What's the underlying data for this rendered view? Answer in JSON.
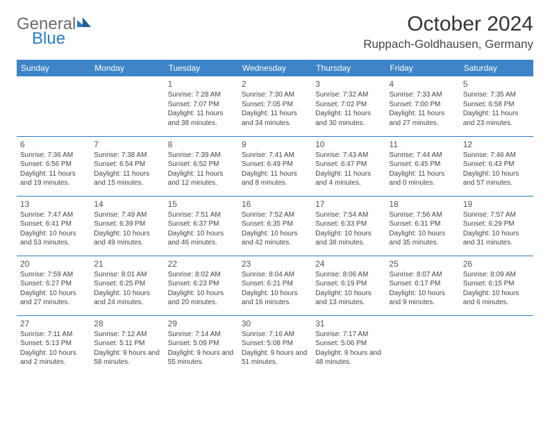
{
  "logo": {
    "part1": "General",
    "part2": "Blue"
  },
  "title": "October 2024",
  "location": "Ruppach-Goldhausen, Germany",
  "colors": {
    "header_bg": "#3d85c6",
    "header_text": "#ffffff",
    "rule": "#2a7bbf",
    "text": "#444444",
    "logo_blue": "#2a7bbf"
  },
  "weekdays": [
    "Sunday",
    "Monday",
    "Tuesday",
    "Wednesday",
    "Thursday",
    "Friday",
    "Saturday"
  ],
  "weeks": [
    [
      null,
      null,
      {
        "n": "1",
        "sr": "Sunrise: 7:28 AM",
        "ss": "Sunset: 7:07 PM",
        "dl": "Daylight: 11 hours and 38 minutes."
      },
      {
        "n": "2",
        "sr": "Sunrise: 7:30 AM",
        "ss": "Sunset: 7:05 PM",
        "dl": "Daylight: 11 hours and 34 minutes."
      },
      {
        "n": "3",
        "sr": "Sunrise: 7:32 AM",
        "ss": "Sunset: 7:02 PM",
        "dl": "Daylight: 11 hours and 30 minutes."
      },
      {
        "n": "4",
        "sr": "Sunrise: 7:33 AM",
        "ss": "Sunset: 7:00 PM",
        "dl": "Daylight: 11 hours and 27 minutes."
      },
      {
        "n": "5",
        "sr": "Sunrise: 7:35 AM",
        "ss": "Sunset: 6:58 PM",
        "dl": "Daylight: 11 hours and 23 minutes."
      }
    ],
    [
      {
        "n": "6",
        "sr": "Sunrise: 7:36 AM",
        "ss": "Sunset: 6:56 PM",
        "dl": "Daylight: 11 hours and 19 minutes."
      },
      {
        "n": "7",
        "sr": "Sunrise: 7:38 AM",
        "ss": "Sunset: 6:54 PM",
        "dl": "Daylight: 11 hours and 15 minutes."
      },
      {
        "n": "8",
        "sr": "Sunrise: 7:39 AM",
        "ss": "Sunset: 6:52 PM",
        "dl": "Daylight: 11 hours and 12 minutes."
      },
      {
        "n": "9",
        "sr": "Sunrise: 7:41 AM",
        "ss": "Sunset: 6:49 PM",
        "dl": "Daylight: 11 hours and 8 minutes."
      },
      {
        "n": "10",
        "sr": "Sunrise: 7:43 AM",
        "ss": "Sunset: 6:47 PM",
        "dl": "Daylight: 11 hours and 4 minutes."
      },
      {
        "n": "11",
        "sr": "Sunrise: 7:44 AM",
        "ss": "Sunset: 6:45 PM",
        "dl": "Daylight: 11 hours and 0 minutes."
      },
      {
        "n": "12",
        "sr": "Sunrise: 7:46 AM",
        "ss": "Sunset: 6:43 PM",
        "dl": "Daylight: 10 hours and 57 minutes."
      }
    ],
    [
      {
        "n": "13",
        "sr": "Sunrise: 7:47 AM",
        "ss": "Sunset: 6:41 PM",
        "dl": "Daylight: 10 hours and 53 minutes."
      },
      {
        "n": "14",
        "sr": "Sunrise: 7:49 AM",
        "ss": "Sunset: 6:39 PM",
        "dl": "Daylight: 10 hours and 49 minutes."
      },
      {
        "n": "15",
        "sr": "Sunrise: 7:51 AM",
        "ss": "Sunset: 6:37 PM",
        "dl": "Daylight: 10 hours and 46 minutes."
      },
      {
        "n": "16",
        "sr": "Sunrise: 7:52 AM",
        "ss": "Sunset: 6:35 PM",
        "dl": "Daylight: 10 hours and 42 minutes."
      },
      {
        "n": "17",
        "sr": "Sunrise: 7:54 AM",
        "ss": "Sunset: 6:33 PM",
        "dl": "Daylight: 10 hours and 38 minutes."
      },
      {
        "n": "18",
        "sr": "Sunrise: 7:56 AM",
        "ss": "Sunset: 6:31 PM",
        "dl": "Daylight: 10 hours and 35 minutes."
      },
      {
        "n": "19",
        "sr": "Sunrise: 7:57 AM",
        "ss": "Sunset: 6:29 PM",
        "dl": "Daylight: 10 hours and 31 minutes."
      }
    ],
    [
      {
        "n": "20",
        "sr": "Sunrise: 7:59 AM",
        "ss": "Sunset: 6:27 PM",
        "dl": "Daylight: 10 hours and 27 minutes."
      },
      {
        "n": "21",
        "sr": "Sunrise: 8:01 AM",
        "ss": "Sunset: 6:25 PM",
        "dl": "Daylight: 10 hours and 24 minutes."
      },
      {
        "n": "22",
        "sr": "Sunrise: 8:02 AM",
        "ss": "Sunset: 6:23 PM",
        "dl": "Daylight: 10 hours and 20 minutes."
      },
      {
        "n": "23",
        "sr": "Sunrise: 8:04 AM",
        "ss": "Sunset: 6:21 PM",
        "dl": "Daylight: 10 hours and 16 minutes."
      },
      {
        "n": "24",
        "sr": "Sunrise: 8:06 AM",
        "ss": "Sunset: 6:19 PM",
        "dl": "Daylight: 10 hours and 13 minutes."
      },
      {
        "n": "25",
        "sr": "Sunrise: 8:07 AM",
        "ss": "Sunset: 6:17 PM",
        "dl": "Daylight: 10 hours and 9 minutes."
      },
      {
        "n": "26",
        "sr": "Sunrise: 8:09 AM",
        "ss": "Sunset: 6:15 PM",
        "dl": "Daylight: 10 hours and 6 minutes."
      }
    ],
    [
      {
        "n": "27",
        "sr": "Sunrise: 7:11 AM",
        "ss": "Sunset: 5:13 PM",
        "dl": "Daylight: 10 hours and 2 minutes."
      },
      {
        "n": "28",
        "sr": "Sunrise: 7:12 AM",
        "ss": "Sunset: 5:11 PM",
        "dl": "Daylight: 9 hours and 58 minutes."
      },
      {
        "n": "29",
        "sr": "Sunrise: 7:14 AM",
        "ss": "Sunset: 5:09 PM",
        "dl": "Daylight: 9 hours and 55 minutes."
      },
      {
        "n": "30",
        "sr": "Sunrise: 7:16 AM",
        "ss": "Sunset: 5:08 PM",
        "dl": "Daylight: 9 hours and 51 minutes."
      },
      {
        "n": "31",
        "sr": "Sunrise: 7:17 AM",
        "ss": "Sunset: 5:06 PM",
        "dl": "Daylight: 9 hours and 48 minutes."
      },
      null,
      null
    ]
  ]
}
